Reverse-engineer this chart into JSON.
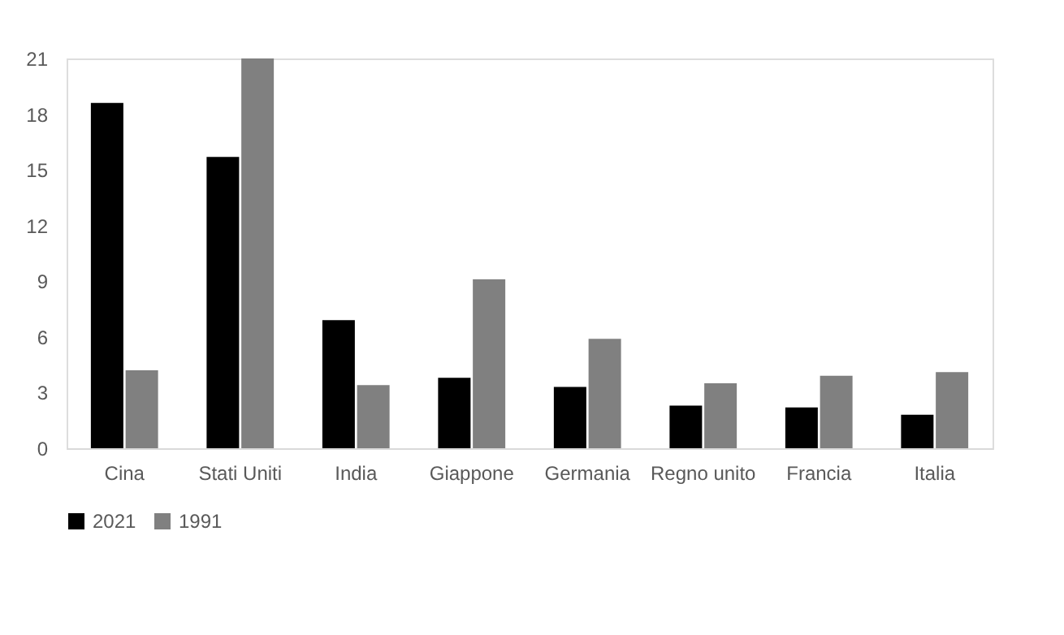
{
  "chart_data": {
    "type": "bar",
    "categories": [
      "Cina",
      "Stati Uniti",
      "India",
      "Giappone",
      "Germania",
      "Regno unito",
      "Francia",
      "Italia"
    ],
    "series": [
      {
        "name": "2021",
        "color": "#000000",
        "values": [
          18.6,
          15.7,
          6.9,
          3.8,
          3.3,
          2.3,
          2.2,
          1.8
        ]
      },
      {
        "name": "1991",
        "color": "#808080",
        "values": [
          4.2,
          21.0,
          3.4,
          9.1,
          5.9,
          3.5,
          3.9,
          4.1
        ]
      }
    ],
    "ylim": [
      0,
      21
    ],
    "yticks": [
      0,
      3,
      6,
      9,
      12,
      15,
      18,
      21
    ],
    "grid": false,
    "legend": "bottom"
  }
}
